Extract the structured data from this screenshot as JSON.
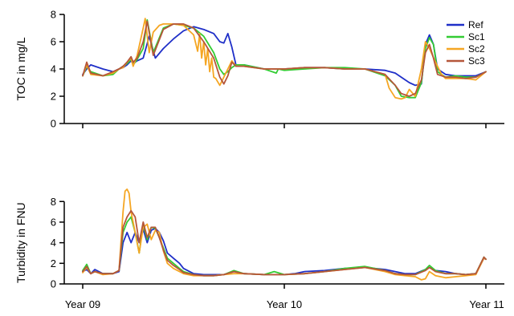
{
  "colors": {
    "Ref": "#1f2fc8",
    "Sc1": "#33cc33",
    "Sc2": "#f5a623",
    "Sc3": "#b5563a",
    "axis": "#000000"
  },
  "x_tick_labels": [
    "Year 09",
    "Year 10",
    "Year 11"
  ],
  "chart_data": [
    {
      "type": "line",
      "ylabel": "TOC in mg/L",
      "ylim": [
        0,
        8
      ],
      "yticks": [
        0,
        2,
        4,
        6,
        8
      ],
      "xlim": [
        0,
        2
      ],
      "legend_position": "top-right",
      "series": [
        {
          "name": "Ref",
          "x": [
            0,
            0.02,
            0.04,
            0.1,
            0.15,
            0.18,
            0.2,
            0.22,
            0.24,
            0.25,
            0.27,
            0.3,
            0.33,
            0.36,
            0.4,
            0.45,
            0.5,
            0.55,
            0.6,
            0.65,
            0.68,
            0.7,
            0.72,
            0.74,
            0.76,
            0.8,
            0.9,
            1.0,
            1.1,
            1.2,
            1.3,
            1.4,
            1.5,
            1.55,
            1.6,
            1.62,
            1.65,
            1.68,
            1.7,
            1.72,
            1.74,
            1.76,
            1.8,
            1.85,
            1.9,
            1.95,
            2.0
          ],
          "values": [
            3.6,
            4.0,
            4.3,
            4.0,
            3.8,
            4.0,
            4.1,
            4.3,
            4.6,
            4.4,
            4.6,
            4.8,
            6.4,
            4.8,
            5.5,
            6.2,
            6.8,
            7.1,
            6.9,
            6.6,
            6.0,
            5.9,
            6.6,
            5.6,
            4.3,
            4.3,
            4.0,
            4.0,
            4.1,
            4.1,
            4.0,
            4.0,
            3.9,
            3.7,
            3.2,
            3.0,
            2.8,
            2.9,
            5.8,
            6.5,
            5.8,
            4.0,
            3.6,
            3.5,
            3.5,
            3.5,
            3.8
          ]
        },
        {
          "name": "Sc1",
          "x": [
            0,
            0.02,
            0.04,
            0.1,
            0.15,
            0.18,
            0.2,
            0.22,
            0.24,
            0.25,
            0.27,
            0.3,
            0.32,
            0.35,
            0.4,
            0.45,
            0.5,
            0.55,
            0.6,
            0.65,
            0.68,
            0.7,
            0.72,
            0.74,
            0.76,
            0.8,
            0.9,
            0.96,
            0.97,
            1.0,
            1.1,
            1.2,
            1.3,
            1.4,
            1.5,
            1.55,
            1.58,
            1.62,
            1.65,
            1.68,
            1.7,
            1.72,
            1.74,
            1.76,
            1.8,
            1.85,
            1.9,
            1.95,
            2.0
          ],
          "values": [
            3.5,
            4.2,
            3.8,
            3.5,
            3.6,
            4.0,
            4.2,
            4.4,
            4.7,
            4.3,
            4.7,
            5.5,
            7.6,
            5.2,
            7.0,
            7.3,
            7.2,
            7.0,
            6.4,
            5.2,
            4.0,
            3.6,
            3.8,
            4.1,
            4.3,
            4.3,
            4.0,
            3.7,
            4.0,
            3.9,
            4.0,
            4.1,
            4.1,
            4.0,
            3.5,
            2.8,
            2.0,
            1.9,
            1.9,
            3.0,
            5.5,
            6.3,
            5.8,
            3.8,
            3.4,
            3.5,
            3.4,
            3.4,
            3.8
          ]
        },
        {
          "name": "Sc2",
          "x": [
            0,
            0.02,
            0.04,
            0.1,
            0.15,
            0.18,
            0.2,
            0.22,
            0.24,
            0.25,
            0.27,
            0.3,
            0.31,
            0.33,
            0.35,
            0.38,
            0.4,
            0.45,
            0.5,
            0.55,
            0.57,
            0.58,
            0.59,
            0.6,
            0.61,
            0.62,
            0.63,
            0.64,
            0.65,
            0.66,
            0.68,
            0.7,
            0.72,
            0.74,
            0.76,
            0.8,
            0.9,
            1.0,
            1.1,
            1.2,
            1.3,
            1.4,
            1.5,
            1.52,
            1.55,
            1.58,
            1.6,
            1.62,
            1.65,
            1.68,
            1.7,
            1.72,
            1.75,
            1.78,
            1.8,
            1.85,
            1.9,
            1.95,
            2.0
          ],
          "values": [
            3.5,
            4.3,
            3.6,
            3.5,
            3.7,
            4.0,
            4.1,
            4.5,
            4.8,
            4.2,
            5.0,
            7.0,
            7.7,
            5.2,
            6.7,
            7.2,
            7.3,
            7.3,
            7.2,
            6.5,
            5.3,
            6.6,
            4.8,
            6.0,
            4.3,
            5.5,
            3.8,
            4.8,
            3.4,
            3.3,
            2.8,
            3.4,
            4.0,
            4.6,
            4.2,
            4.2,
            4.0,
            4.0,
            4.1,
            4.1,
            4.0,
            4.0,
            3.6,
            2.6,
            1.9,
            1.8,
            1.9,
            2.5,
            2.0,
            4.0,
            6.0,
            5.5,
            4.5,
            3.6,
            3.3,
            3.3,
            3.3,
            3.2,
            3.8
          ]
        },
        {
          "name": "Sc3",
          "x": [
            0,
            0.02,
            0.04,
            0.1,
            0.15,
            0.18,
            0.2,
            0.22,
            0.24,
            0.25,
            0.27,
            0.3,
            0.32,
            0.35,
            0.4,
            0.45,
            0.5,
            0.55,
            0.6,
            0.65,
            0.68,
            0.7,
            0.72,
            0.74,
            0.76,
            0.8,
            0.9,
            1.0,
            1.1,
            1.2,
            1.3,
            1.4,
            1.5,
            1.55,
            1.58,
            1.62,
            1.65,
            1.68,
            1.7,
            1.72,
            1.74,
            1.76,
            1.8,
            1.85,
            1.9,
            1.95,
            2.0
          ],
          "values": [
            3.5,
            4.5,
            3.7,
            3.5,
            3.8,
            4.0,
            4.2,
            4.5,
            4.9,
            4.5,
            4.8,
            6.0,
            7.5,
            5.0,
            6.9,
            7.3,
            7.3,
            7.0,
            6.0,
            4.8,
            3.4,
            2.9,
            3.5,
            4.5,
            4.2,
            4.2,
            4.0,
            4.0,
            4.1,
            4.1,
            4.0,
            4.0,
            3.6,
            2.8,
            2.2,
            2.0,
            2.2,
            3.2,
            5.2,
            5.8,
            4.8,
            3.6,
            3.4,
            3.4,
            3.3,
            3.4,
            3.8
          ]
        }
      ]
    },
    {
      "type": "line",
      "ylabel": "Turbidity in FNU",
      "ylim": [
        0,
        9.5
      ],
      "yticks": [
        0,
        2,
        4,
        6,
        8
      ],
      "xlim": [
        0,
        2
      ],
      "series": [
        {
          "name": "Ref",
          "x": [
            0,
            0.02,
            0.04,
            0.06,
            0.1,
            0.15,
            0.18,
            0.2,
            0.22,
            0.24,
            0.26,
            0.28,
            0.3,
            0.32,
            0.34,
            0.36,
            0.38,
            0.4,
            0.42,
            0.45,
            0.48,
            0.5,
            0.55,
            0.6,
            0.65,
            0.7,
            0.75,
            0.8,
            0.9,
            1.0,
            1.05,
            1.1,
            1.2,
            1.3,
            1.4,
            1.5,
            1.55,
            1.6,
            1.65,
            1.7,
            1.72,
            1.75,
            1.8,
            1.85,
            1.9,
            1.95,
            1.99,
            2.0
          ],
          "values": [
            1.2,
            1.4,
            1.0,
            1.4,
            1.0,
            1.0,
            1.2,
            4.0,
            5.0,
            4.0,
            5.0,
            4.0,
            5.3,
            4.0,
            5.2,
            5.4,
            5.0,
            4.2,
            3.0,
            2.5,
            2.0,
            1.5,
            1.0,
            0.9,
            0.9,
            0.9,
            1.2,
            1.0,
            0.9,
            0.9,
            1.0,
            1.2,
            1.3,
            1.5,
            1.6,
            1.4,
            1.2,
            1.0,
            1.0,
            1.4,
            1.6,
            1.3,
            1.2,
            1.0,
            0.9,
            1.0,
            2.5,
            2.4
          ]
        },
        {
          "name": "Sc1",
          "x": [
            0,
            0.02,
            0.04,
            0.06,
            0.1,
            0.15,
            0.18,
            0.2,
            0.22,
            0.24,
            0.26,
            0.28,
            0.3,
            0.32,
            0.34,
            0.36,
            0.38,
            0.4,
            0.42,
            0.45,
            0.48,
            0.5,
            0.55,
            0.6,
            0.65,
            0.7,
            0.75,
            0.8,
            0.9,
            0.95,
            1.0,
            1.1,
            1.2,
            1.3,
            1.4,
            1.5,
            1.55,
            1.6,
            1.65,
            1.7,
            1.72,
            1.75,
            1.8,
            1.85,
            1.9,
            1.95,
            1.99,
            2.0
          ],
          "values": [
            1.3,
            1.9,
            1.0,
            1.2,
            1.0,
            1.0,
            1.3,
            5.0,
            6.0,
            6.5,
            5.0,
            3.0,
            5.8,
            4.3,
            5.5,
            5.4,
            4.5,
            3.5,
            2.5,
            2.0,
            1.5,
            1.2,
            0.9,
            0.8,
            0.8,
            0.9,
            1.3,
            1.0,
            0.9,
            1.2,
            0.9,
            1.0,
            1.2,
            1.5,
            1.7,
            1.3,
            1.0,
            0.9,
            0.9,
            1.4,
            1.8,
            1.3,
            1.0,
            1.0,
            0.9,
            1.0,
            2.6,
            2.4
          ]
        },
        {
          "name": "Sc2",
          "x": [
            0,
            0.02,
            0.04,
            0.06,
            0.1,
            0.15,
            0.18,
            0.2,
            0.21,
            0.22,
            0.23,
            0.24,
            0.26,
            0.28,
            0.3,
            0.32,
            0.34,
            0.36,
            0.38,
            0.4,
            0.42,
            0.45,
            0.48,
            0.5,
            0.55,
            0.6,
            0.65,
            0.7,
            0.75,
            0.8,
            0.9,
            1.0,
            1.1,
            1.2,
            1.3,
            1.4,
            1.5,
            1.55,
            1.6,
            1.65,
            1.68,
            1.7,
            1.72,
            1.75,
            1.8,
            1.85,
            1.9,
            1.95,
            1.99,
            2.0
          ],
          "values": [
            1.1,
            1.6,
            1.0,
            1.2,
            0.9,
            1.0,
            1.3,
            7.0,
            9.0,
            9.2,
            8.8,
            7.0,
            5.0,
            3.0,
            5.5,
            5.8,
            4.3,
            5.2,
            5.0,
            3.2,
            2.0,
            1.5,
            1.2,
            1.0,
            0.8,
            0.8,
            0.8,
            0.9,
            1.0,
            1.0,
            0.9,
            0.9,
            1.0,
            1.2,
            1.4,
            1.6,
            1.2,
            0.9,
            0.8,
            0.7,
            0.4,
            0.5,
            1.2,
            0.8,
            0.6,
            0.7,
            0.8,
            0.9,
            2.5,
            2.4
          ]
        },
        {
          "name": "Sc3",
          "x": [
            0,
            0.02,
            0.04,
            0.06,
            0.1,
            0.15,
            0.18,
            0.2,
            0.22,
            0.24,
            0.26,
            0.28,
            0.3,
            0.32,
            0.34,
            0.36,
            0.38,
            0.4,
            0.42,
            0.45,
            0.48,
            0.5,
            0.55,
            0.6,
            0.65,
            0.7,
            0.75,
            0.8,
            0.9,
            1.0,
            1.1,
            1.2,
            1.3,
            1.4,
            1.5,
            1.55,
            1.6,
            1.65,
            1.7,
            1.72,
            1.75,
            1.8,
            1.85,
            1.9,
            1.95,
            1.99,
            2.0
          ],
          "values": [
            1.2,
            1.7,
            1.0,
            1.2,
            1.0,
            1.0,
            1.3,
            5.5,
            6.5,
            7.1,
            6.5,
            4.0,
            6.0,
            4.5,
            5.5,
            5.5,
            4.5,
            3.3,
            2.3,
            1.8,
            1.4,
            1.1,
            0.9,
            0.8,
            0.8,
            0.9,
            1.2,
            1.0,
            0.9,
            0.9,
            1.0,
            1.2,
            1.4,
            1.6,
            1.3,
            1.0,
            0.9,
            0.9,
            1.3,
            1.6,
            1.2,
            1.0,
            1.0,
            0.9,
            1.0,
            2.6,
            2.4
          ]
        }
      ]
    }
  ]
}
